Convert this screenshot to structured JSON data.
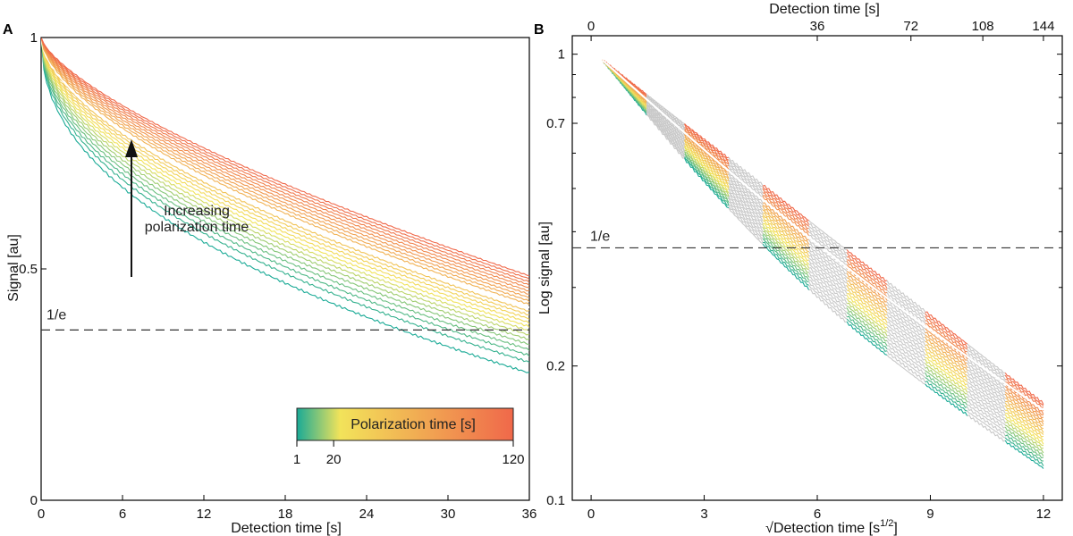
{
  "chart_data": [
    {
      "panel": "A",
      "type": "line",
      "xlabel": "Detection time [s]",
      "ylabel": "Signal [au]",
      "xlim": [
        0,
        36
      ],
      "ylim": [
        0,
        1
      ],
      "xticks": [
        0,
        6,
        12,
        18,
        24,
        30,
        36
      ],
      "yticks": [
        {
          "value": 0,
          "label": "0"
        },
        {
          "value": 0.5,
          "label": "0.5"
        },
        {
          "value": 1,
          "label": "1"
        }
      ],
      "reference_line": {
        "label": "1/e",
        "value": 0.368
      },
      "annotation": {
        "line1": "Increasing",
        "line2": "polarization time"
      },
      "colorbar": {
        "label": "Polarization time [s]",
        "ticks": [
          "1",
          "20",
          "120"
        ],
        "tick_values": [
          1,
          20,
          120
        ],
        "range": [
          1,
          120
        ],
        "colors": [
          "#1aaa96",
          "#f2e35a",
          "#f0684a"
        ]
      },
      "series_endpoints": {
        "count": 24,
        "x": 36,
        "end_values_min": 0.275,
        "end_values_max": 0.485,
        "highlight_polarization_time": 30
      }
    },
    {
      "panel": "B",
      "type": "line",
      "xlabel": "√Detection time [s",
      "xlabel_sup": "1/2",
      "xlabel_end": "]",
      "top_xlabel": "Detection time [s]",
      "ylabel": "Log signal [au]",
      "xlim": [
        -0.5,
        12.5
      ],
      "ylim": [
        0.1,
        1.1
      ],
      "y_scale": "log",
      "xticks": [
        0,
        3,
        6,
        9,
        12
      ],
      "top_xticks": [
        0,
        36,
        72,
        108,
        144
      ],
      "yticks": [
        {
          "value": 0.1,
          "label": "0.1"
        },
        {
          "value": 0.2,
          "label": "0.2"
        },
        {
          "value": 0.7,
          "label": "0.7"
        },
        {
          "value": 1,
          "label": "1"
        }
      ],
      "reference_line": {
        "label": "1/e",
        "value": 0.368
      },
      "series_endpoints": {
        "count": 24,
        "x_start": 0.3,
        "x_end": 12,
        "end_values_min": 0.118,
        "end_values_max": 0.165
      },
      "gray_bands_x": [
        [
          1.5,
          2.5
        ],
        [
          3.7,
          4.6
        ],
        [
          5.8,
          6.8
        ],
        [
          7.9,
          8.9
        ],
        [
          10,
          11
        ]
      ]
    }
  ]
}
